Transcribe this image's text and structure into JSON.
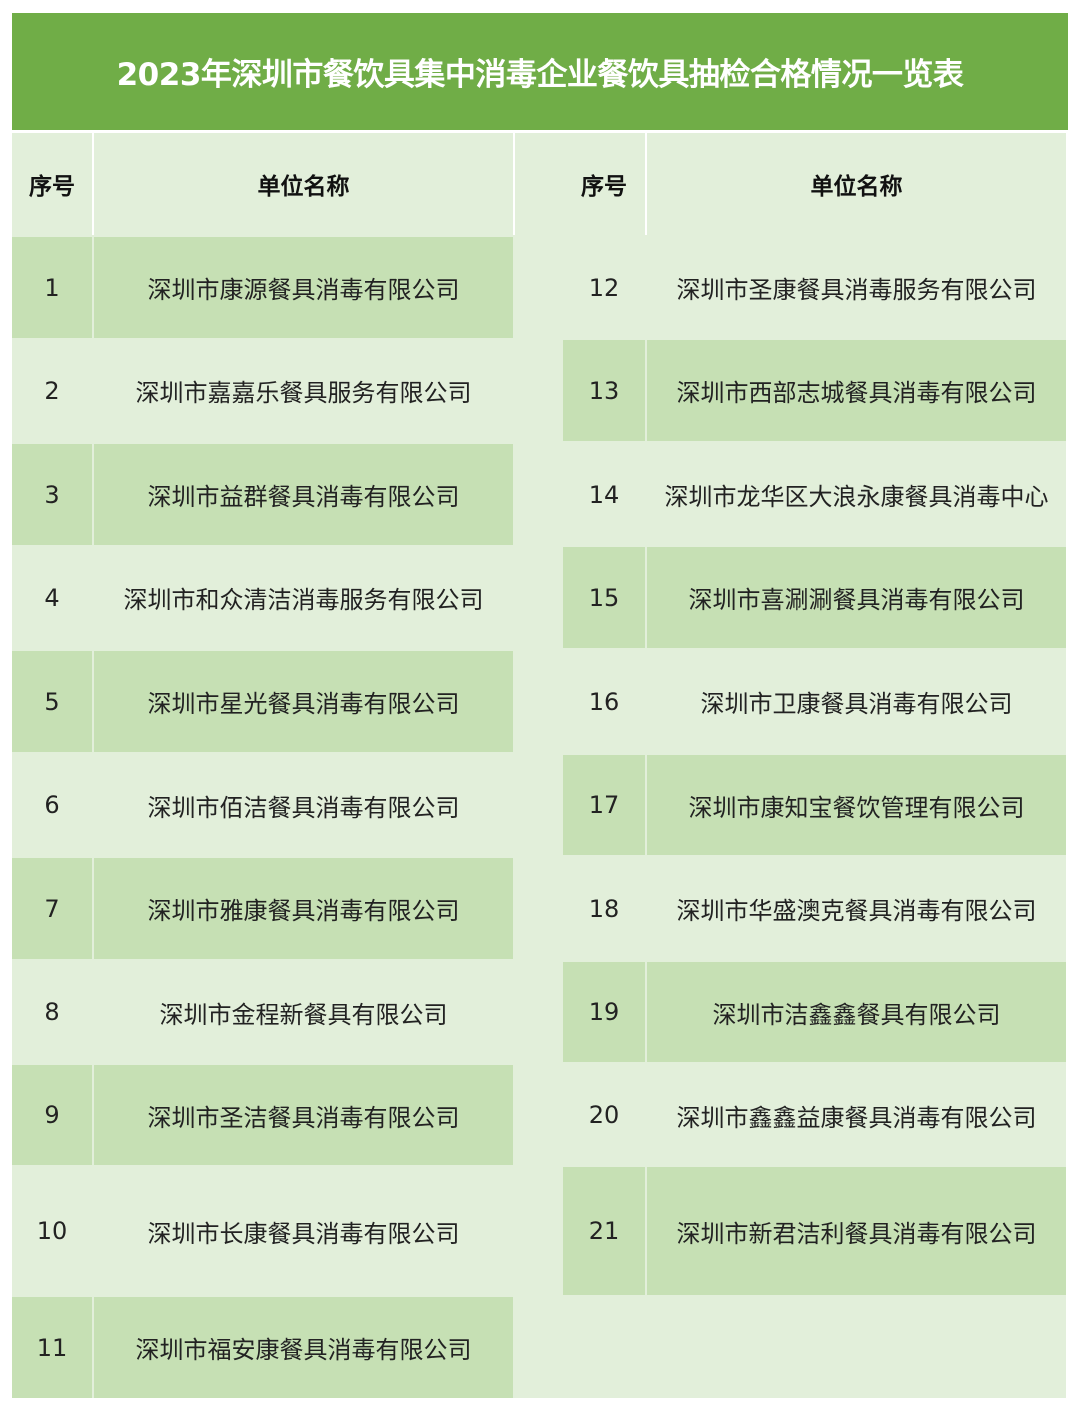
{
  "title": "2023年深圳市餐饮具集中消毒企业餐饮具抽检合格情况一览表",
  "headers": {
    "index": "序号",
    "name": "单位名称"
  },
  "colors": {
    "title_bg": "#70ad47",
    "row_dark": "#c6e0b4",
    "row_light": "#e2efda"
  },
  "left_rows": [
    {
      "no": "1",
      "name": "深圳市康源餐具消毒有限公司"
    },
    {
      "no": "2",
      "name": "深圳市嘉嘉乐餐具服务有限公司"
    },
    {
      "no": "3",
      "name": "深圳市益群餐具消毒有限公司"
    },
    {
      "no": "4",
      "name": "深圳市和众清洁消毒服务有限公司"
    },
    {
      "no": "5",
      "name": "深圳市星光餐具消毒有限公司"
    },
    {
      "no": "6",
      "name": "深圳市佰洁餐具消毒有限公司"
    },
    {
      "no": "7",
      "name": "深圳市雅康餐具消毒有限公司"
    },
    {
      "no": "8",
      "name": "深圳市金程新餐具有限公司"
    },
    {
      "no": "9",
      "name": "深圳市圣洁餐具消毒有限公司"
    },
    {
      "no": "10",
      "name": "深圳市长康餐具消毒有限公司"
    },
    {
      "no": "11",
      "name": "深圳市福安康餐具消毒有限公司"
    }
  ],
  "right_rows": [
    {
      "no": "12",
      "name": "深圳市圣康餐具消毒服务有限公司"
    },
    {
      "no": "13",
      "name": "深圳市西部志城餐具消毒有限公司"
    },
    {
      "no": "14",
      "name": "深圳市龙华区大浪永康餐具消毒中心"
    },
    {
      "no": "15",
      "name": "深圳市喜涮涮餐具消毒有限公司"
    },
    {
      "no": "16",
      "name": "深圳市卫康餐具消毒有限公司"
    },
    {
      "no": "17",
      "name": "深圳市康知宝餐饮管理有限公司"
    },
    {
      "no": "18",
      "name": "深圳市华盛澳克餐具消毒有限公司"
    },
    {
      "no": "19",
      "name": "深圳市洁鑫鑫餐具有限公司"
    },
    {
      "no": "20",
      "name": "深圳市鑫鑫益康餐具消毒有限公司"
    },
    {
      "no": "21",
      "name": "深圳市新君洁利餐具消毒有限公司"
    },
    {
      "no": "",
      "name": ""
    }
  ]
}
